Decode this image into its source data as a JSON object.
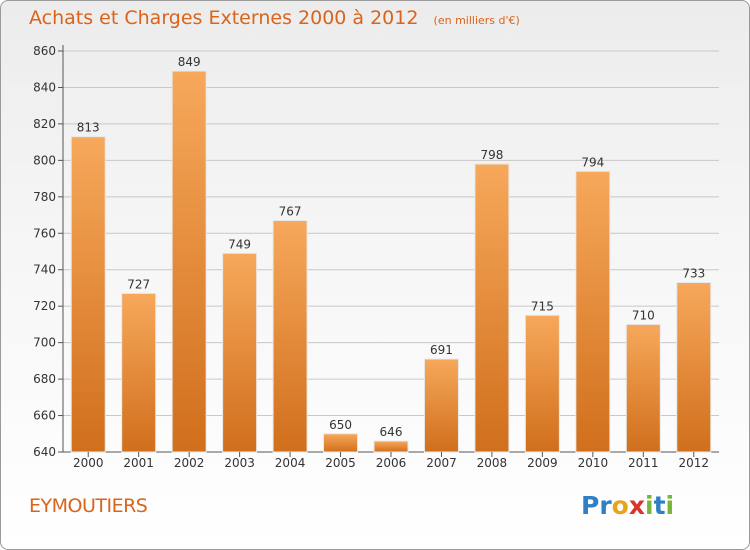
{
  "title": "Achats et Charges Externes 2000 à 2012",
  "subtitle": "(en milliers d'€)",
  "commune": "EYMOUTIERS",
  "logo": {
    "text": "Proxiti",
    "letters": [
      {
        "char": "P",
        "color": "#2e7fc6"
      },
      {
        "char": "r",
        "color": "#2e7fc6"
      },
      {
        "char": "o",
        "color": "#e9a519"
      },
      {
        "char": "x",
        "color": "#d9332b"
      },
      {
        "char": "i",
        "color": "#79b53b"
      },
      {
        "char": "t",
        "color": "#2e7fc6"
      },
      {
        "char": "i",
        "color": "#79b53b"
      }
    ]
  },
  "colors": {
    "accent": "#d9641a",
    "bar_light": "#f7a85b",
    "bar_dark": "#d06f1c",
    "grid": "#c8c8c8"
  },
  "chart_data": {
    "type": "bar",
    "title": "Achats et Charges Externes 2000 à 2012",
    "subtitle": "(en milliers d'€)",
    "categories": [
      "2000",
      "2001",
      "2002",
      "2003",
      "2004",
      "2005",
      "2006",
      "2007",
      "2008",
      "2009",
      "2010",
      "2011",
      "2012"
    ],
    "values": [
      813,
      727,
      849,
      749,
      767,
      650,
      646,
      691,
      798,
      715,
      794,
      710,
      733
    ],
    "ylim": [
      640,
      860
    ],
    "yticks": [
      640,
      660,
      680,
      700,
      720,
      740,
      760,
      780,
      800,
      820,
      840,
      860
    ],
    "grid": true,
    "data_labels": true
  }
}
